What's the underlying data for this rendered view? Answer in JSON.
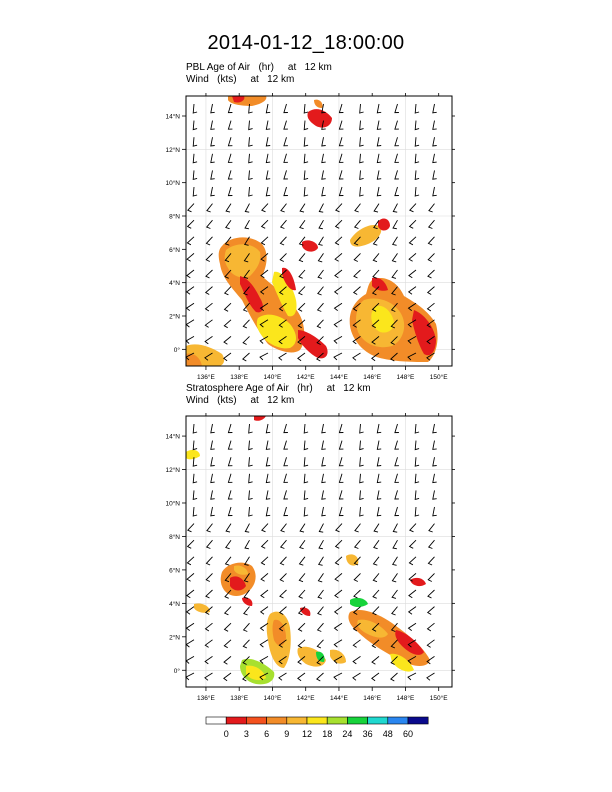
{
  "title": "2014-01-12_18:00:00",
  "panels": [
    {
      "id": "pbl",
      "line1": "PBL Age of Air   (hr)     at   12 km",
      "line2": "Wind   (kts)     at   12 km"
    },
    {
      "id": "strat",
      "line1": "Stratosphere Age of Air   (hr)     at   12 km",
      "line2": "Wind   (kts)     at   12 km"
    }
  ],
  "axes": {
    "lat_labels": [
      "0°",
      "2°N",
      "4°N",
      "6°N",
      "8°N",
      "10°N",
      "12°N",
      "14°N"
    ],
    "lon_labels": [
      "136°E",
      "138°E",
      "140°E",
      "142°E",
      "144°E",
      "146°E",
      "148°E",
      "150°E"
    ],
    "lat_range": [
      -1,
      15.2
    ],
    "lon_range": [
      134.8,
      150.8
    ]
  },
  "colorbar": {
    "labels": [
      "0",
      "3",
      "6",
      "9",
      "12",
      "18",
      "24",
      "36",
      "48",
      "60"
    ],
    "colors": [
      "#ffffff",
      "#e31a1c",
      "#f4511e",
      "#f28c28",
      "#f7b733",
      "#fbe61c",
      "#a7e02f",
      "#17d33b",
      "#1fd8cf",
      "#2a86f0",
      "#0a0a8c"
    ]
  }
}
